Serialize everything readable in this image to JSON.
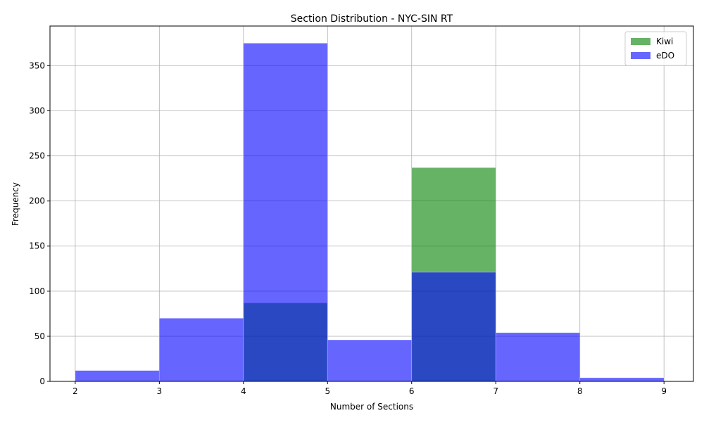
{
  "chart_data": {
    "type": "bar",
    "subtype": "overlapping-histogram",
    "title": "Section Distribution - NYC-SIN RT",
    "xlabel": "Number of Sections",
    "ylabel": "Frequency",
    "xlim": [
      1.7,
      9.35
    ],
    "ylim": [
      0,
      394
    ],
    "x_ticks": [
      2,
      3,
      4,
      5,
      6,
      7,
      8,
      9
    ],
    "y_ticks": [
      0,
      50,
      100,
      150,
      200,
      250,
      300,
      350
    ],
    "bin_edges": [
      2,
      3,
      4,
      5,
      6,
      7,
      8,
      9
    ],
    "grid": true,
    "legend_position": "top-right",
    "series": [
      {
        "name": "Kiwi",
        "color": "#008000",
        "opacity": 0.6,
        "values": [
          0,
          0,
          87,
          0,
          237,
          0,
          0
        ]
      },
      {
        "name": "eDO",
        "color": "#0000ff",
        "opacity": 0.6,
        "values": [
          12,
          70,
          375,
          46,
          121,
          54,
          4
        ]
      }
    ]
  }
}
